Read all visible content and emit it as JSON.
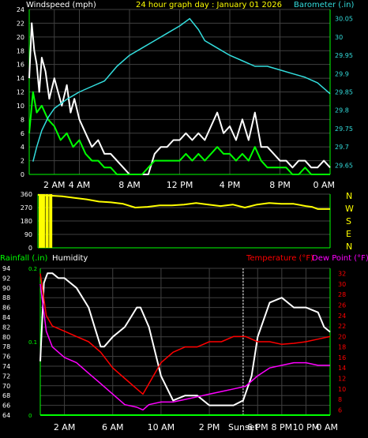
{
  "header": {
    "wind_label": "Windspeed (mph)",
    "title": "24 hour graph day : January 01 2026",
    "baro_label": "Barometer (.in)"
  },
  "middle": {
    "compass": [
      "N",
      "W",
      "S",
      "E",
      "N"
    ]
  },
  "bottom_header": {
    "rain_label": "Rainfall (.in)",
    "humidity_label": "Humidity",
    "temp_label": "Temperature (°F)",
    "dew_label": "Dew Point (°F)"
  },
  "colors": {
    "background": "#000000",
    "axis": "#00ff00",
    "grid": "#404040",
    "wind_gust": "#ffffff",
    "wind_avg": "#00ff00",
    "barometer": "#33dddd",
    "direction": "#ffff00",
    "temperature": "#ff0000",
    "dewpoint": "#ff00ff",
    "humidity": "#ffffff",
    "rainfall": "#00ff00",
    "title": "#ffff00"
  },
  "chart_data": [
    {
      "type": "line",
      "name": "wind_barometer",
      "x_ticks": [
        "2 AM",
        "4 AM",
        "8 AM",
        "12 PM",
        "4 PM",
        "8 PM",
        "0 AM"
      ],
      "x_tick_hours": [
        2,
        4,
        8,
        12,
        16,
        20,
        24
      ],
      "x_range": [
        0,
        24
      ],
      "ylim_left": [
        0,
        24
      ],
      "yticks_left": [
        "24",
        "22",
        "20",
        "18",
        "16",
        "14",
        "12",
        "10",
        "8",
        "6",
        "4",
        "2",
        "0"
      ],
      "ylim_right": [
        29.625,
        30.075
      ],
      "yticks_right": [
        "30.05",
        "30",
        "29.95",
        "29.9",
        "29.85",
        "29.8",
        "29.75",
        "29.7",
        "29.65"
      ],
      "yticks_right_values": [
        30.05,
        30.0,
        29.95,
        29.9,
        29.85,
        29.8,
        29.75,
        29.7,
        29.65
      ],
      "series": [
        {
          "key": "barometer",
          "x": [
            0.3,
            0.6,
            1,
            1.5,
            2,
            3,
            4,
            5,
            6,
            7,
            8,
            9,
            10,
            11,
            12,
            12.8,
            13.5,
            14,
            15,
            16,
            17,
            18,
            19,
            20,
            21,
            22,
            23,
            24
          ],
          "y": [
            29.66,
            29.7,
            29.745,
            29.78,
            29.805,
            29.83,
            29.85,
            29.865,
            29.88,
            29.92,
            29.95,
            29.97,
            29.99,
            30.01,
            30.03,
            30.05,
            30.02,
            29.99,
            29.97,
            29.95,
            29.935,
            29.92,
            29.92,
            29.91,
            29.9,
            29.89,
            29.875,
            29.845
          ]
        },
        {
          "key": "wind_gust",
          "x": [
            0,
            0.2,
            0.4,
            0.6,
            0.8,
            1,
            1.3,
            1.6,
            2,
            2.3,
            2.6,
            3,
            3.3,
            3.6,
            4,
            4.5,
            5,
            5.5,
            6,
            6.5,
            7,
            7.5,
            8,
            8.5,
            9,
            9.5,
            10,
            10.5,
            11,
            11.5,
            12,
            12.5,
            13,
            13.5,
            14,
            14.5,
            15,
            15.5,
            16,
            16.5,
            17,
            17.5,
            18,
            18.5,
            19,
            19.5,
            20,
            20.5,
            21,
            21.5,
            22,
            22.5,
            23,
            23.5,
            24
          ],
          "y": [
            14,
            22,
            18,
            16,
            12,
            17,
            15,
            11,
            14,
            12,
            10,
            13,
            9,
            11,
            8,
            6,
            4,
            5,
            3,
            3,
            2,
            1,
            0,
            0,
            0,
            0,
            3,
            4,
            4,
            5,
            5,
            6,
            5,
            6,
            5,
            7,
            9,
            6,
            7,
            5,
            8,
            5,
            9,
            4,
            4,
            3,
            2,
            2,
            1,
            2,
            2,
            1,
            1,
            2,
            1
          ]
        },
        {
          "key": "wind_avg",
          "x": [
            0,
            0.3,
            0.6,
            1,
            1.5,
            2,
            2.5,
            3,
            3.5,
            4,
            4.5,
            5,
            5.5,
            6,
            6.5,
            7,
            7.5,
            8,
            8.5,
            9,
            9.5,
            10,
            10.5,
            11,
            11.5,
            12,
            12.5,
            13,
            13.5,
            14,
            14.5,
            15,
            15.5,
            16,
            16.5,
            17,
            17.5,
            18,
            18.5,
            19,
            19.5,
            20,
            20.5,
            21,
            21.5,
            22,
            22.5,
            23,
            23.5,
            24
          ],
          "y": [
            6,
            12,
            9,
            10,
            8,
            7,
            5,
            6,
            4,
            5,
            3,
            2,
            2,
            1,
            1,
            0,
            0,
            0,
            0,
            0,
            1,
            2,
            2,
            2,
            2,
            2,
            3,
            2,
            3,
            2,
            3,
            4,
            3,
            3,
            2,
            3,
            2,
            4,
            2,
            1,
            1,
            1,
            1,
            0,
            0,
            1,
            0,
            0,
            0,
            0
          ]
        }
      ]
    },
    {
      "type": "line",
      "name": "wind_direction",
      "ylim": [
        0,
        360
      ],
      "yticks": [
        "360",
        "270",
        "180",
        "90",
        "0"
      ],
      "yticks_values": [
        360,
        270,
        180,
        90,
        0
      ],
      "series": [
        {
          "key": "direction",
          "x": [
            0,
            1,
            2,
            3,
            4,
            5,
            6,
            7,
            8,
            9,
            10,
            11,
            12,
            13,
            14,
            15,
            16,
            17,
            18,
            19,
            20,
            21,
            22,
            22.5,
            23,
            24
          ],
          "y": [
            355,
            350,
            345,
            335,
            325,
            310,
            305,
            295,
            270,
            275,
            285,
            285,
            290,
            300,
            290,
            280,
            290,
            270,
            290,
            300,
            295,
            295,
            280,
            275,
            260,
            260
          ]
        },
        {
          "key": "direction_spikes",
          "x": [
            0.2,
            0.45,
            0.75,
            1.05
          ],
          "y": [
            0,
            0,
            0,
            0
          ]
        }
      ]
    },
    {
      "type": "line",
      "name": "temp_humidity",
      "x_ticks": [
        "2 AM",
        "6 AM",
        "10 AM",
        "2 PM",
        "Sunset",
        "6 PM",
        "8 PM",
        "10 PM",
        "0 AM"
      ],
      "x_tick_hours": [
        2,
        6,
        10,
        14,
        16.8,
        18,
        20,
        22,
        24
      ],
      "x_range": [
        0,
        24
      ],
      "ylim_humidity": [
        64,
        94
      ],
      "yticks_humidity": [
        "94",
        "92",
        "90",
        "88",
        "86",
        "84",
        "82",
        "80",
        "78",
        "76",
        "74",
        "72",
        "70",
        "68",
        "66",
        "64"
      ],
      "ylim_rain": [
        0,
        0.2
      ],
      "yticks_rain": [
        "0.2",
        "0.1",
        "0"
      ],
      "yticks_rain_values": [
        0.2,
        0.1,
        0
      ],
      "ylim_temp": [
        5,
        33
      ],
      "yticks_temp": [
        "32",
        "30",
        "28",
        "26",
        "24",
        "22",
        "20",
        "18",
        "16",
        "14",
        "12",
        "10",
        "8",
        "6"
      ],
      "series": [
        {
          "key": "humidity",
          "x": [
            0,
            0.3,
            0.6,
            1,
            1.5,
            2,
            3,
            4,
            4.5,
            5,
            5.3,
            6,
            7,
            7.5,
            8,
            8.3,
            9,
            10,
            11,
            12,
            13,
            14,
            15,
            16,
            16.8,
            17.5,
            18,
            19,
            20,
            21,
            22,
            23,
            23.5,
            24
          ],
          "y": [
            75,
            91,
            93,
            93,
            92,
            92,
            90,
            86,
            82,
            78,
            78,
            80,
            82,
            84,
            86,
            86,
            82,
            72,
            67,
            68,
            68,
            66,
            66,
            66,
            67,
            72,
            80,
            87,
            88,
            86,
            86,
            85,
            82,
            81
          ]
        },
        {
          "key": "temperature",
          "x": [
            0,
            0.5,
            1,
            2,
            3,
            4,
            5,
            6,
            7,
            8,
            8.5,
            9,
            10,
            11,
            12,
            13,
            14,
            15,
            16,
            17,
            18,
            19,
            20,
            21,
            22,
            23,
            24
          ],
          "y": [
            32,
            24,
            22,
            21,
            20,
            19,
            17,
            14,
            12,
            10,
            9,
            11,
            15,
            17,
            18,
            18,
            19,
            19,
            20,
            20,
            19,
            19,
            18.5,
            18.7,
            19,
            19.5,
            20
          ]
        },
        {
          "key": "dewpoint",
          "x": [
            0,
            0.5,
            1,
            2,
            3,
            4,
            5,
            6,
            7,
            8,
            8.5,
            9,
            10,
            11,
            12,
            13,
            14,
            15,
            16,
            17,
            18,
            19,
            20,
            21,
            22,
            23,
            24
          ],
          "y": [
            30,
            21,
            18,
            16,
            15,
            13,
            11,
            9,
            7,
            6.5,
            6,
            7,
            7.5,
            7.5,
            8,
            8.5,
            9,
            9.5,
            10,
            10.5,
            12.5,
            14,
            14.5,
            15,
            15,
            14.5,
            14.5
          ]
        },
        {
          "key": "rainfall",
          "x": [
            0,
            24
          ],
          "y": [
            0,
            0
          ]
        }
      ]
    }
  ]
}
